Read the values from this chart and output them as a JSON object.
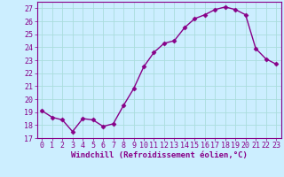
{
  "x": [
    0,
    1,
    2,
    3,
    4,
    5,
    6,
    7,
    8,
    9,
    10,
    11,
    12,
    13,
    14,
    15,
    16,
    17,
    18,
    19,
    20,
    21,
    22,
    23
  ],
  "y": [
    19.1,
    18.6,
    18.4,
    17.5,
    18.5,
    18.4,
    17.9,
    18.1,
    19.5,
    20.8,
    22.5,
    23.6,
    24.3,
    24.5,
    25.5,
    26.2,
    26.5,
    26.9,
    27.1,
    26.9,
    26.5,
    23.9,
    23.1,
    22.7
  ],
  "line_color": "#880088",
  "marker": "D",
  "markersize": 2.5,
  "linewidth": 1.0,
  "bg_color": "#cceeff",
  "grid_color": "#aadddd",
  "tick_color": "#880088",
  "label_color": "#880088",
  "xlabel": "Windchill (Refroidissement éolien,°C)",
  "ylabel": "",
  "ylim": [
    17,
    27.5
  ],
  "yticks": [
    17,
    18,
    19,
    20,
    21,
    22,
    23,
    24,
    25,
    26,
    27
  ],
  "xticks": [
    0,
    1,
    2,
    3,
    4,
    5,
    6,
    7,
    8,
    9,
    10,
    11,
    12,
    13,
    14,
    15,
    16,
    17,
    18,
    19,
    20,
    21,
    22,
    23
  ],
  "xlim": [
    -0.5,
    23.5
  ],
  "xlabel_fontsize": 6.5,
  "tick_fontsize": 6.0
}
